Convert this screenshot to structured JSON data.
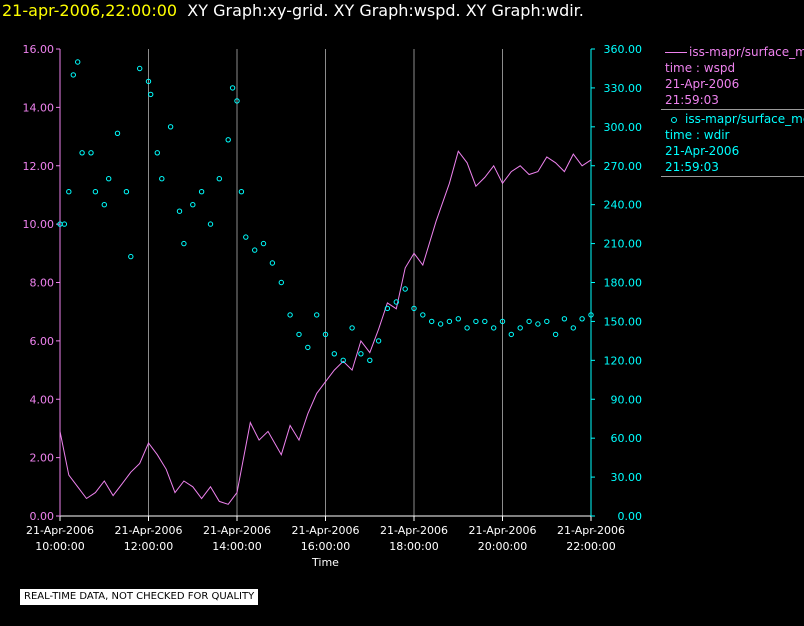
{
  "header": {
    "timestamp": "21-apr-2006,22:00:00",
    "graph_titles": "XY Graph:xy-grid.  XY Graph:wspd.  XY Graph:wdir."
  },
  "disclaimer": "REAL-TIME DATA, NOT CHECKED FOR QUALITY",
  "legend": [
    {
      "marker": "line",
      "series": "iss-mapr/surface_met",
      "variable": "time : wspd",
      "date": "21-Apr-2006",
      "time": "21:59:03",
      "color": "#ee82ee"
    },
    {
      "marker": "circle",
      "series": "iss-mapr/surface_met",
      "variable": "time : wdir",
      "date": "21-Apr-2006",
      "time": "21:59:03",
      "color": "#00ffff"
    }
  ],
  "chart_data": {
    "type": "line+scatter",
    "xlabel": "Time",
    "x_range_hours": [
      10,
      22
    ],
    "x_ticks": [
      {
        "h": 10,
        "date": "21-Apr-2006",
        "time": "10:00:00"
      },
      {
        "h": 12,
        "date": "21-Apr-2006",
        "time": "12:00:00"
      },
      {
        "h": 14,
        "date": "21-Apr-2006",
        "time": "14:00:00"
      },
      {
        "h": 16,
        "date": "21-Apr-2006",
        "time": "16:00:00"
      },
      {
        "h": 18,
        "date": "21-Apr-2006",
        "time": "18:00:00"
      },
      {
        "h": 20,
        "date": "21-Apr-2006",
        "time": "20:00:00"
      },
      {
        "h": 22,
        "date": "21-Apr-2006",
        "time": "22:00:00"
      }
    ],
    "y_left": {
      "label": "wspd",
      "range": [
        0,
        16
      ],
      "ticks": [
        "0.00",
        "2.00",
        "4.00",
        "6.00",
        "8.00",
        "10.00",
        "12.00",
        "14.00",
        "16.00"
      ],
      "color": "#ee82ee"
    },
    "y_right": {
      "label": "wdir",
      "range": [
        0,
        360
      ],
      "ticks": [
        "0.00",
        "30.00",
        "60.00",
        "90.00",
        "120.00",
        "150.00",
        "180.00",
        "210.00",
        "240.00",
        "270.00",
        "300.00",
        "330.00",
        "360.00"
      ],
      "color": "#00ffff"
    },
    "series": [
      {
        "name": "wspd",
        "style": "line",
        "color": "#ee82ee",
        "points": [
          [
            10.0,
            2.9
          ],
          [
            10.2,
            1.4
          ],
          [
            10.4,
            1.0
          ],
          [
            10.6,
            0.6
          ],
          [
            10.8,
            0.8
          ],
          [
            11.0,
            1.2
          ],
          [
            11.2,
            0.7
          ],
          [
            11.4,
            1.1
          ],
          [
            11.6,
            1.5
          ],
          [
            11.8,
            1.8
          ],
          [
            12.0,
            2.5
          ],
          [
            12.2,
            2.1
          ],
          [
            12.4,
            1.6
          ],
          [
            12.6,
            0.8
          ],
          [
            12.8,
            1.2
          ],
          [
            13.0,
            1.0
          ],
          [
            13.2,
            0.6
          ],
          [
            13.4,
            1.0
          ],
          [
            13.6,
            0.5
          ],
          [
            13.8,
            0.4
          ],
          [
            14.0,
            0.8
          ],
          [
            14.1,
            1.6
          ],
          [
            14.3,
            3.2
          ],
          [
            14.5,
            2.6
          ],
          [
            14.7,
            2.9
          ],
          [
            15.0,
            2.1
          ],
          [
            15.2,
            3.1
          ],
          [
            15.4,
            2.6
          ],
          [
            15.6,
            3.5
          ],
          [
            15.8,
            4.2
          ],
          [
            16.0,
            4.6
          ],
          [
            16.2,
            5.0
          ],
          [
            16.4,
            5.3
          ],
          [
            16.6,
            5.0
          ],
          [
            16.8,
            6.0
          ],
          [
            17.0,
            5.6
          ],
          [
            17.2,
            6.4
          ],
          [
            17.4,
            7.3
          ],
          [
            17.6,
            7.1
          ],
          [
            17.8,
            8.5
          ],
          [
            18.0,
            9.0
          ],
          [
            18.2,
            8.6
          ],
          [
            18.5,
            10.1
          ],
          [
            18.8,
            11.4
          ],
          [
            19.0,
            12.5
          ],
          [
            19.2,
            12.1
          ],
          [
            19.4,
            11.3
          ],
          [
            19.6,
            11.6
          ],
          [
            19.8,
            12.0
          ],
          [
            20.0,
            11.4
          ],
          [
            20.2,
            11.8
          ],
          [
            20.4,
            12.0
          ],
          [
            20.6,
            11.7
          ],
          [
            20.8,
            11.8
          ],
          [
            21.0,
            12.3
          ],
          [
            21.2,
            12.1
          ],
          [
            21.4,
            11.8
          ],
          [
            21.6,
            12.4
          ],
          [
            21.8,
            12.0
          ],
          [
            22.0,
            12.2
          ]
        ]
      },
      {
        "name": "wdir",
        "style": "circle",
        "color": "#00ffff",
        "points": [
          [
            10.0,
            225
          ],
          [
            10.1,
            225
          ],
          [
            10.2,
            250
          ],
          [
            10.3,
            340
          ],
          [
            10.4,
            350
          ],
          [
            10.5,
            280
          ],
          [
            10.7,
            280
          ],
          [
            10.8,
            250
          ],
          [
            11.0,
            240
          ],
          [
            11.1,
            260
          ],
          [
            11.3,
            295
          ],
          [
            11.5,
            250
          ],
          [
            11.6,
            200
          ],
          [
            11.8,
            345
          ],
          [
            12.0,
            335
          ],
          [
            12.05,
            325
          ],
          [
            12.2,
            280
          ],
          [
            12.3,
            260
          ],
          [
            12.5,
            300
          ],
          [
            12.7,
            235
          ],
          [
            12.8,
            210
          ],
          [
            13.0,
            240
          ],
          [
            13.2,
            250
          ],
          [
            13.4,
            225
          ],
          [
            13.6,
            260
          ],
          [
            13.8,
            290
          ],
          [
            13.9,
            330
          ],
          [
            14.0,
            320
          ],
          [
            14.1,
            250
          ],
          [
            14.2,
            215
          ],
          [
            14.4,
            205
          ],
          [
            14.6,
            210
          ],
          [
            14.8,
            195
          ],
          [
            15.0,
            180
          ],
          [
            15.2,
            155
          ],
          [
            15.4,
            140
          ],
          [
            15.6,
            130
          ],
          [
            15.8,
            155
          ],
          [
            16.0,
            140
          ],
          [
            16.2,
            125
          ],
          [
            16.4,
            120
          ],
          [
            16.6,
            145
          ],
          [
            16.8,
            125
          ],
          [
            17.0,
            120
          ],
          [
            17.2,
            135
          ],
          [
            17.4,
            160
          ],
          [
            17.6,
            165
          ],
          [
            17.8,
            175
          ],
          [
            18.0,
            160
          ],
          [
            18.2,
            155
          ],
          [
            18.4,
            150
          ],
          [
            18.6,
            148
          ],
          [
            18.8,
            150
          ],
          [
            19.0,
            152
          ],
          [
            19.2,
            145
          ],
          [
            19.4,
            150
          ],
          [
            19.6,
            150
          ],
          [
            19.8,
            145
          ],
          [
            20.0,
            150
          ],
          [
            20.2,
            140
          ],
          [
            20.4,
            145
          ],
          [
            20.6,
            150
          ],
          [
            20.8,
            148
          ],
          [
            21.0,
            150
          ],
          [
            21.2,
            140
          ],
          [
            21.4,
            152
          ],
          [
            21.6,
            145
          ],
          [
            21.8,
            152
          ],
          [
            22.0,
            155
          ]
        ]
      }
    ]
  }
}
